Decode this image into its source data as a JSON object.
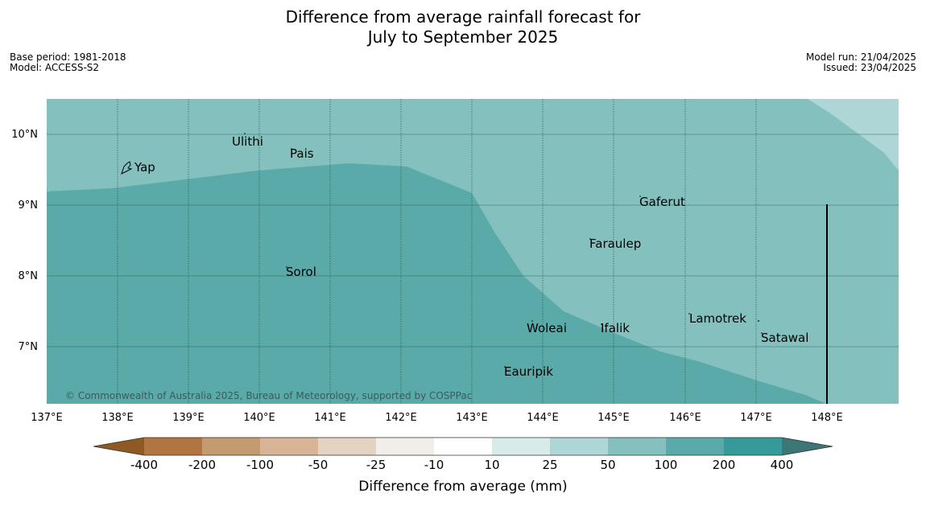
{
  "title": {
    "line1": "Difference from average rainfall forecast for",
    "line2": "July to September 2025"
  },
  "meta": {
    "base_period": "Base period: 1981-2018",
    "model": "Model: ACCESS-S2",
    "model_run": "Model run: 21/04/2025",
    "issued": "Issued: 23/04/2025"
  },
  "map": {
    "lon_range": [
      137,
      149
    ],
    "lat_range": [
      6.2,
      10.5
    ],
    "lon_ticks": [
      "137°E",
      "138°E",
      "139°E",
      "140°E",
      "141°E",
      "142°E",
      "143°E",
      "144°E",
      "145°E",
      "146°E",
      "147°E",
      "148°E"
    ],
    "lat_ticks": [
      "10°N",
      "9°N",
      "8°N",
      "7°N"
    ],
    "copyright": "© Commonwealth of Australia 2025, Bureau of Meteorology, supported by COSPPac",
    "places": [
      {
        "name": "Yap"
      },
      {
        "name": "Ulithi"
      },
      {
        "name": "Pais"
      },
      {
        "name": "Gaferut"
      },
      {
        "name": "Faraulep"
      },
      {
        "name": "Sorol"
      },
      {
        "name": "Lamotrek"
      },
      {
        "name": "Woleai"
      },
      {
        "name": "Ifalik"
      },
      {
        "name": "Satawal"
      },
      {
        "name": "Eauripik"
      }
    ],
    "colors": {
      "class_200_400": "#5baaaa",
      "class_100_200": "#84c0be",
      "class_50_100": "#aed6d6"
    }
  },
  "colorbar": {
    "labels": [
      "-400",
      "-200",
      "-100",
      "-50",
      "-25",
      "-10",
      "10",
      "25",
      "50",
      "100",
      "200",
      "400"
    ],
    "colors": [
      "#8f5a22",
      "#b07540",
      "#c49a70",
      "#d7b496",
      "#e5d3c2",
      "#f1eee9",
      "#ffffff",
      "#d6ebea",
      "#aed6d6",
      "#84c0be",
      "#5baaaa",
      "#359a99",
      "#3d7676"
    ],
    "title": "Difference from average (mm)"
  }
}
